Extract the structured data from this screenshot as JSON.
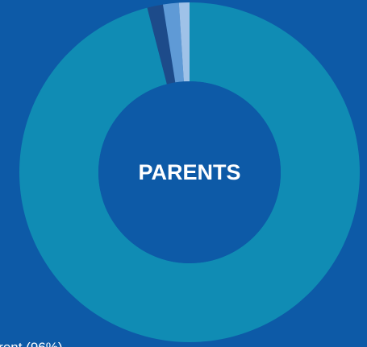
{
  "chart_data": {
    "type": "pie",
    "center_label": "PARENTS",
    "slices": [
      {
        "name": "",
        "value": 96,
        "color": "#108cb4",
        "label": "...rent (96%)"
      },
      {
        "name": "",
        "value": 1.5,
        "color": "#1d4b8a",
        "label": ""
      },
      {
        "name": "",
        "value": 1.5,
        "color": "#5f9ad6",
        "label": ""
      },
      {
        "name": "",
        "value": 1,
        "color": "#9fc2e8",
        "label": ""
      }
    ],
    "background_color": "#0d5aa7"
  }
}
